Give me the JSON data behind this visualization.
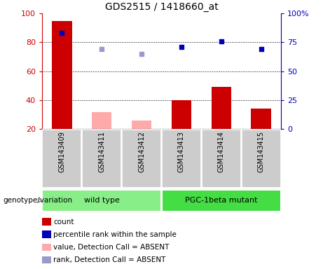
{
  "title": "GDS2515 / 1418660_at",
  "samples": [
    "GSM143409",
    "GSM143411",
    "GSM143412",
    "GSM143413",
    "GSM143414",
    "GSM143415"
  ],
  "count_values": [
    95,
    null,
    null,
    40,
    49,
    34
  ],
  "count_absent_values": [
    null,
    32,
    26,
    null,
    null,
    null
  ],
  "percentile_rank": [
    83,
    null,
    null,
    71,
    76,
    69
  ],
  "rank_absent": [
    null,
    69,
    65,
    null,
    null,
    null
  ],
  "ylim_left": [
    20,
    100
  ],
  "ylim_right": [
    0,
    100
  ],
  "yticks_left": [
    20,
    40,
    60,
    80,
    100
  ],
  "yticks_right": [
    0,
    25,
    50,
    75,
    100
  ],
  "yticklabels_right": [
    "0",
    "25",
    "50",
    "75",
    "100%"
  ],
  "bar_color_present": "#cc0000",
  "bar_color_absent": "#ffaaaa",
  "dot_color_present": "#0000bb",
  "dot_color_absent": "#9999cc",
  "bar_width": 0.5,
  "background_xtick": "#cccccc",
  "group_color_wt": "#88ee88",
  "group_color_mut": "#44dd44",
  "legend_items": [
    {
      "color": "#cc0000",
      "label": "count"
    },
    {
      "color": "#0000bb",
      "label": "percentile rank within the sample"
    },
    {
      "color": "#ffaaaa",
      "label": "value, Detection Call = ABSENT"
    },
    {
      "color": "#9999cc",
      "label": "rank, Detection Call = ABSENT"
    }
  ]
}
